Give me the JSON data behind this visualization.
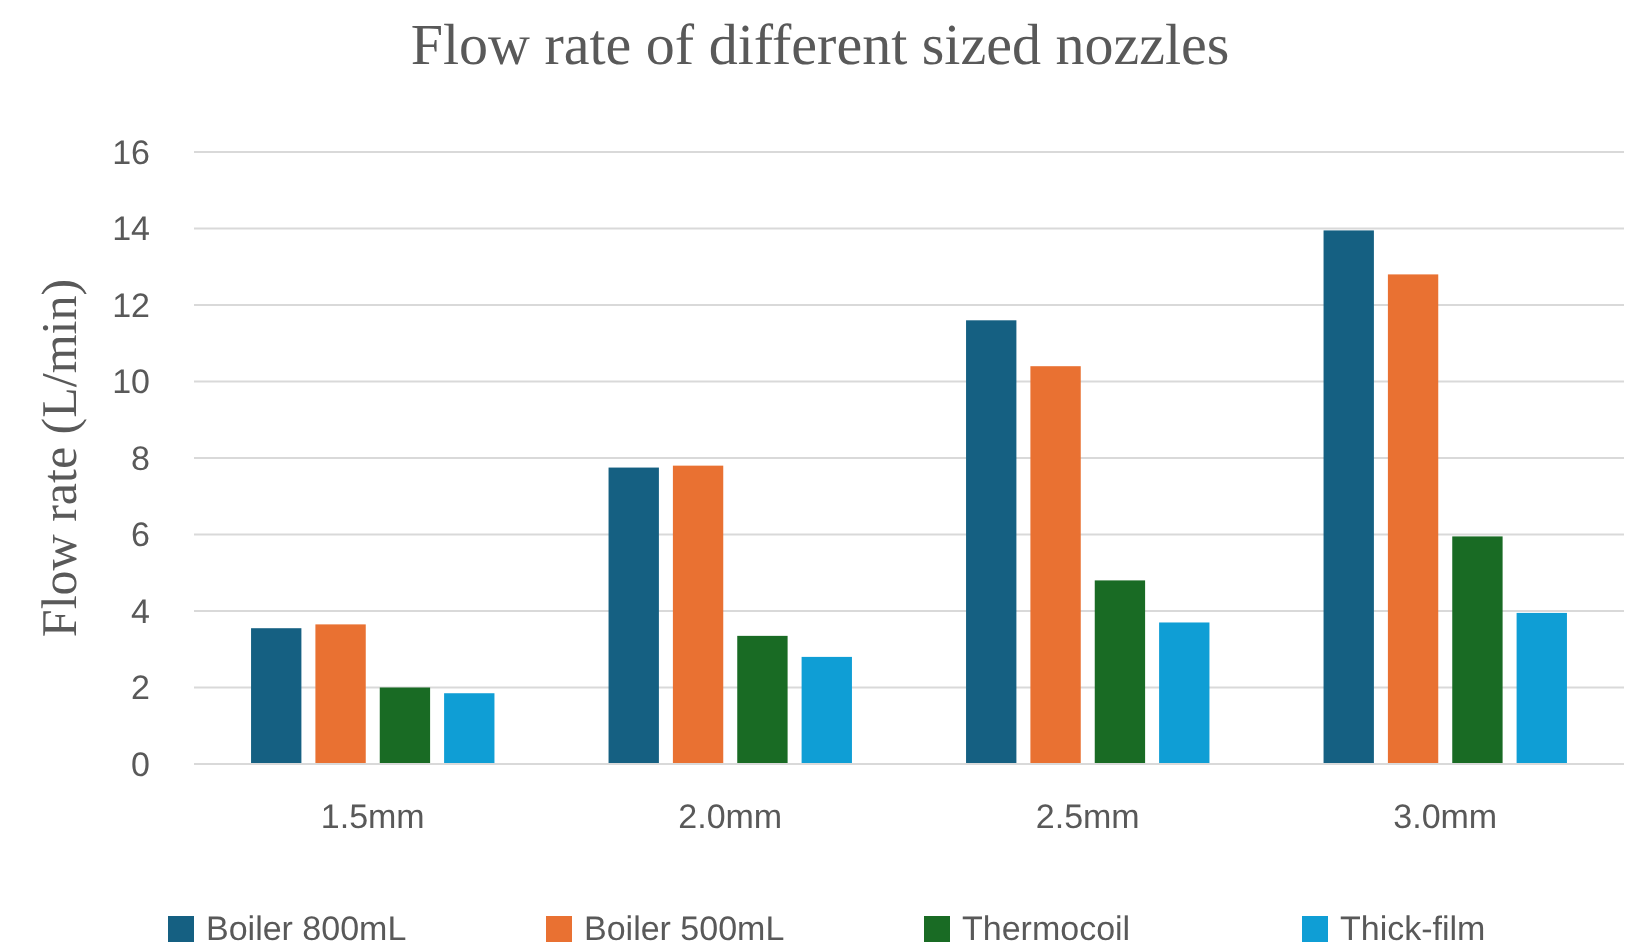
{
  "chart_data": {
    "type": "bar",
    "title": "Flow rate of different sized nozzles",
    "ylabel": "Flow rate (L/min)",
    "categories": [
      "1.5mm",
      "2.0mm",
      "2.5mm",
      "3.0mm"
    ],
    "series": [
      {
        "name": "Boiler 800mL",
        "color": "#156082",
        "values": [
          3.55,
          7.75,
          11.6,
          13.95
        ]
      },
      {
        "name": "Boiler 500mL",
        "color": "#e97132",
        "values": [
          3.65,
          7.8,
          10.4,
          12.8
        ]
      },
      {
        "name": "Thermocoil",
        "color": "#196b24",
        "values": [
          2.0,
          3.35,
          4.8,
          5.95
        ]
      },
      {
        "name": "Thick-film",
        "color": "#0f9ed5",
        "values": [
          1.85,
          2.8,
          3.7,
          3.95
        ]
      }
    ],
    "ylim": [
      0,
      16
    ],
    "yticks": [
      0,
      2,
      4,
      6,
      8,
      10,
      12,
      14,
      16
    ],
    "grid": "y",
    "legend": "bottom"
  }
}
